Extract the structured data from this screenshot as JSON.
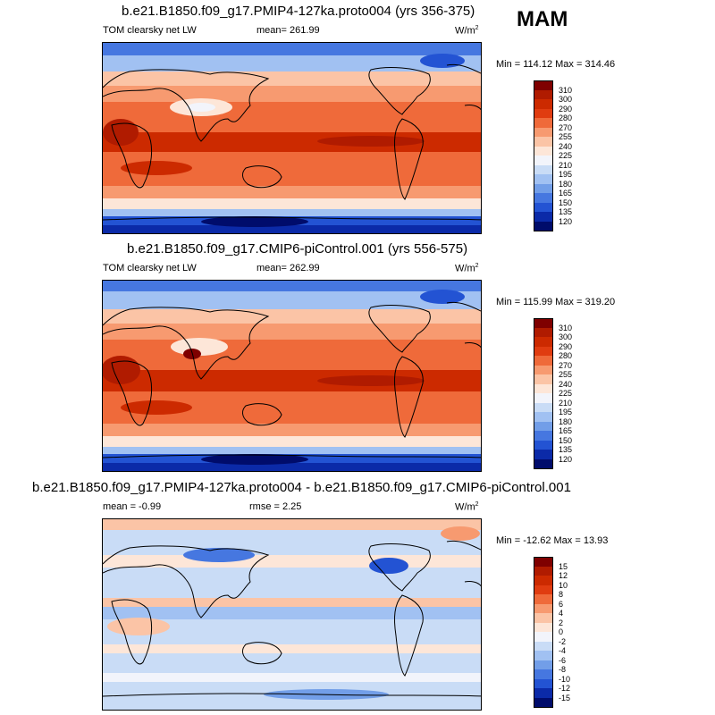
{
  "season": "MAM",
  "panels": [
    {
      "title": "b.e21.B1850.f09_g17.PMIP4-127ka.proto004 (yrs 356-375)",
      "left_label": "TOM clearsky net LW",
      "mean_text": "mean= 261.99",
      "rmse_text": "",
      "units": "W/m",
      "units_sup": "2",
      "minmax": "Min = 114.12 Max = 314.46",
      "colorbar": {
        "labels": [
          "310",
          "300",
          "290",
          "280",
          "270",
          "255",
          "240",
          "225",
          "210",
          "195",
          "180",
          "165",
          "150",
          "135",
          "120"
        ],
        "colors": [
          "#7f0000",
          "#b01b00",
          "#cc2a00",
          "#e03c10",
          "#ef6a3a",
          "#f79a70",
          "#fbc4a6",
          "#fde6d8",
          "#f2f4fb",
          "#c9dcf6",
          "#a1c1f2",
          "#729ee8",
          "#4677e0",
          "#2353d3",
          "#0b2aa8",
          "#000c6b"
        ]
      }
    },
    {
      "title": "b.e21.B1850.f09_g17.CMIP6-piControl.001 (yrs 556-575)",
      "left_label": "TOM clearsky net LW",
      "mean_text": "mean= 262.99",
      "rmse_text": "",
      "units": "W/m",
      "units_sup": "2",
      "minmax": "Min = 115.99 Max = 319.20",
      "colorbar": {
        "labels": [
          "310",
          "300",
          "290",
          "280",
          "270",
          "255",
          "240",
          "225",
          "210",
          "195",
          "180",
          "165",
          "150",
          "135",
          "120"
        ],
        "colors": [
          "#7f0000",
          "#b01b00",
          "#cc2a00",
          "#e03c10",
          "#ef6a3a",
          "#f79a70",
          "#fbc4a6",
          "#fde6d8",
          "#f2f4fb",
          "#c9dcf6",
          "#a1c1f2",
          "#729ee8",
          "#4677e0",
          "#2353d3",
          "#0b2aa8",
          "#000c6b"
        ]
      }
    },
    {
      "title": "b.e21.B1850.f09_g17.PMIP4-127ka.proto004 - b.e21.B1850.f09_g17.CMIP6-piControl.001",
      "left_label": "",
      "mean_text": "mean =  -0.99",
      "rmse_text": "rmse =   2.25",
      "units": "W/m",
      "units_sup": "2",
      "minmax": "Min = -12.62 Max =  13.93",
      "colorbar": {
        "labels": [
          "15",
          "12",
          "10",
          "8",
          "6",
          "4",
          "2",
          "0",
          "-2",
          "-4",
          "-6",
          "-8",
          "-10",
          "-12",
          "-15"
        ],
        "colors": [
          "#7f0000",
          "#b01b00",
          "#cc2a00",
          "#e03c10",
          "#ef6a3a",
          "#f79a70",
          "#fbc4a6",
          "#fde6d8",
          "#f2f4fb",
          "#c9dcf6",
          "#a1c1f2",
          "#729ee8",
          "#4677e0",
          "#2353d3",
          "#0b2aa8",
          "#000c6b"
        ]
      }
    }
  ]
}
